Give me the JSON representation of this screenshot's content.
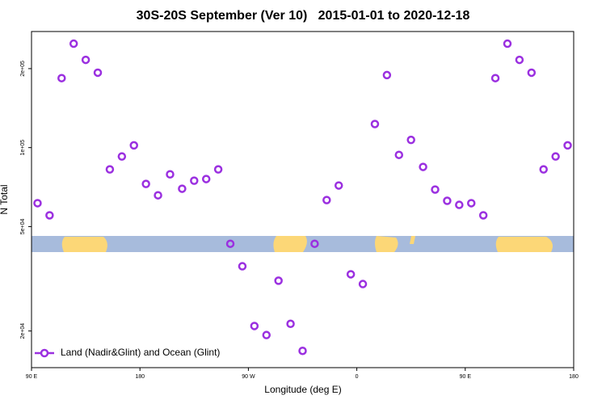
{
  "chart_data": {
    "type": "scatter",
    "title": "30S-20S September (Ver 10)   2015-01-01 to 2020-12-18",
    "x_label": "Longitude (deg E)",
    "y_label": "N Total",
    "log_y": true,
    "grid": false,
    "legend_position": "bottom-left",
    "xlim": [
      90,
      540
    ],
    "xticks": [
      {
        "value": 90,
        "label": "90 E"
      },
      180,
      {
        "value": 270,
        "label": "90 W"
      },
      {
        "value": 360,
        "label": "0"
      },
      {
        "value": 450,
        "label": "90 E"
      },
      {
        "value": 540,
        "label": "180"
      }
    ],
    "ylim": [
      14500,
      277000
    ],
    "yticks": [
      {
        "value": 20000,
        "label": "2e+04"
      },
      {
        "value": 50000,
        "label": "5e+04"
      },
      {
        "value": 100000,
        "label": "1e+05"
      },
      {
        "value": 200000,
        "label": "2e+05"
      }
    ],
    "x": [
      95,
      105,
      115,
      125,
      135,
      145,
      155,
      165,
      175,
      185,
      195,
      205,
      215,
      225,
      235,
      245,
      255,
      265,
      275,
      285,
      295,
      305,
      315,
      325,
      335,
      345,
      355,
      365,
      375,
      385,
      395,
      405,
      415,
      425,
      435,
      445,
      455,
      465,
      475,
      485,
      495,
      505,
      515,
      525,
      535
    ],
    "series": [
      {
        "name": "Land (Nadir&Glint) and Ocean (Glint)",
        "color": "#9b30e0",
        "values": [
          61400,
          55200,
          184000,
          249000,
          216000,
          193000,
          82600,
          92500,
          102000,
          72700,
          65800,
          79100,
          69700,
          74800,
          75900,
          82600,
          43000,
          35300,
          20900,
          19300,
          31100,
          21300,
          16800,
          43000,
          63100,
          71700,
          32900,
          30200,
          123000,
          189000,
          93800,
          107000,
          84400,
          69200,
          62700,
          60500,
          61400,
          55200,
          184000,
          249000,
          216000,
          193000,
          82600,
          92500,
          102000
        ]
      }
    ]
  }
}
